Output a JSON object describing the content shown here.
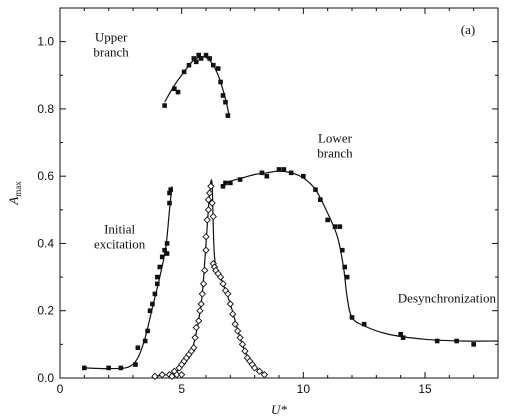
{
  "chart_data": {
    "type": "scatter",
    "panel_label": "(a)",
    "xlabel": "U*",
    "ylabel": {
      "main": "A",
      "sub": "max"
    },
    "xlim": [
      0,
      18
    ],
    "ylim": [
      0,
      1.1
    ],
    "xticks": [
      0,
      5,
      10,
      15
    ],
    "yticks": [
      0.0,
      0.2,
      0.4,
      0.6,
      0.8,
      1.0
    ],
    "annotations": [
      {
        "lines": [
          "Upper",
          "branch"
        ],
        "x": 2.1,
        "y": 1.0
      },
      {
        "lines": [
          "Lower",
          "branch"
        ],
        "x": 11.3,
        "y": 0.7
      },
      {
        "lines": [
          "Initial",
          "excitation"
        ],
        "x": 2.45,
        "y": 0.43
      },
      {
        "lines": [
          "Desynchronization"
        ],
        "x": 15.9,
        "y": 0.225
      }
    ],
    "series": [
      {
        "marker": "square-filled",
        "points": [
          [
            1.0,
            0.03
          ],
          [
            2.0,
            0.03
          ],
          [
            2.5,
            0.03
          ],
          [
            3.1,
            0.04
          ],
          [
            3.2,
            0.09
          ],
          [
            3.5,
            0.11
          ],
          [
            3.6,
            0.14
          ],
          [
            3.7,
            0.2
          ],
          [
            3.8,
            0.22
          ],
          [
            3.9,
            0.25
          ],
          [
            4.0,
            0.28
          ],
          [
            4.0,
            0.3
          ],
          [
            4.1,
            0.33
          ],
          [
            4.2,
            0.36
          ],
          [
            4.3,
            0.38
          ],
          [
            4.4,
            0.37
          ],
          [
            4.4,
            0.4
          ],
          [
            4.5,
            0.52
          ],
          [
            4.5,
            0.55
          ],
          [
            4.55,
            0.56
          ],
          [
            4.3,
            0.81
          ],
          [
            4.7,
            0.86
          ],
          [
            4.85,
            0.85
          ],
          [
            5.1,
            0.91
          ],
          [
            5.3,
            0.93
          ],
          [
            5.5,
            0.95
          ],
          [
            5.6,
            0.94
          ],
          [
            5.7,
            0.96
          ],
          [
            5.8,
            0.95
          ],
          [
            6.0,
            0.96
          ],
          [
            6.15,
            0.95
          ],
          [
            6.3,
            0.93
          ],
          [
            6.5,
            0.92
          ],
          [
            6.6,
            0.88
          ],
          [
            6.7,
            0.84
          ],
          [
            6.8,
            0.82
          ],
          [
            6.9,
            0.78
          ],
          [
            6.7,
            0.57
          ],
          [
            6.8,
            0.58
          ],
          [
            7.0,
            0.58
          ],
          [
            7.4,
            0.59
          ],
          [
            8.3,
            0.61
          ],
          [
            8.5,
            0.6
          ],
          [
            9.0,
            0.62
          ],
          [
            9.2,
            0.62
          ],
          [
            9.5,
            0.61
          ],
          [
            10.0,
            0.6
          ],
          [
            10.5,
            0.56
          ],
          [
            10.7,
            0.53
          ],
          [
            11.0,
            0.47
          ],
          [
            11.3,
            0.45
          ],
          [
            11.5,
            0.45
          ],
          [
            11.6,
            0.38
          ],
          [
            11.7,
            0.33
          ],
          [
            11.8,
            0.3
          ],
          [
            12.0,
            0.18
          ],
          [
            12.5,
            0.16
          ],
          [
            14.0,
            0.13
          ],
          [
            14.1,
            0.12
          ],
          [
            15.5,
            0.11
          ],
          [
            16.3,
            0.11
          ],
          [
            17.0,
            0.1
          ]
        ]
      },
      {
        "marker": "diamond-open",
        "points": [
          [
            3.9,
            0.005
          ],
          [
            4.2,
            0.01
          ],
          [
            4.5,
            0.01
          ],
          [
            4.7,
            0.02
          ],
          [
            4.9,
            0.03
          ],
          [
            5.0,
            0.04
          ],
          [
            5.1,
            0.05
          ],
          [
            5.2,
            0.06
          ],
          [
            5.3,
            0.07
          ],
          [
            5.4,
            0.08
          ],
          [
            5.5,
            0.09
          ],
          [
            5.55,
            0.12
          ],
          [
            5.6,
            0.15
          ],
          [
            5.7,
            0.17
          ],
          [
            5.75,
            0.2
          ],
          [
            5.8,
            0.22
          ],
          [
            5.85,
            0.25
          ],
          [
            5.9,
            0.28
          ],
          [
            5.95,
            0.32
          ],
          [
            6.0,
            0.38
          ],
          [
            6.0,
            0.42
          ],
          [
            6.05,
            0.47
          ],
          [
            6.1,
            0.5
          ],
          [
            6.1,
            0.53
          ],
          [
            6.15,
            0.55
          ],
          [
            6.2,
            0.57
          ],
          [
            6.25,
            0.52
          ],
          [
            6.3,
            0.48
          ],
          [
            6.3,
            0.34
          ],
          [
            6.35,
            0.33
          ],
          [
            6.4,
            0.32
          ],
          [
            6.5,
            0.31
          ],
          [
            6.6,
            0.3
          ],
          [
            6.7,
            0.28
          ],
          [
            6.8,
            0.26
          ],
          [
            6.9,
            0.25
          ],
          [
            7.0,
            0.22
          ],
          [
            7.1,
            0.19
          ],
          [
            7.2,
            0.16
          ],
          [
            7.3,
            0.14
          ],
          [
            7.4,
            0.12
          ],
          [
            7.5,
            0.1
          ],
          [
            7.6,
            0.08
          ],
          [
            7.7,
            0.06
          ],
          [
            7.8,
            0.05
          ],
          [
            7.9,
            0.04
          ],
          [
            8.0,
            0.03
          ],
          [
            8.2,
            0.02
          ],
          [
            8.4,
            0.01
          ],
          [
            4.6,
            0.005
          ],
          [
            4.8,
            0.01
          ],
          [
            5.0,
            0.01
          ]
        ]
      }
    ],
    "fit_curves": [
      {
        "points": [
          [
            1.0,
            0.03
          ],
          [
            2.0,
            0.028
          ],
          [
            2.8,
            0.032
          ],
          [
            3.2,
            0.06
          ],
          [
            3.5,
            0.12
          ],
          [
            3.8,
            0.21
          ],
          [
            4.1,
            0.3
          ],
          [
            4.35,
            0.39
          ],
          [
            4.5,
            0.5
          ],
          [
            4.6,
            0.57
          ]
        ]
      },
      {
        "points": [
          [
            4.3,
            0.82
          ],
          [
            4.7,
            0.87
          ],
          [
            5.1,
            0.91
          ],
          [
            5.5,
            0.945
          ],
          [
            5.9,
            0.955
          ],
          [
            6.2,
            0.94
          ],
          [
            6.5,
            0.9
          ],
          [
            6.8,
            0.83
          ],
          [
            6.95,
            0.78
          ]
        ]
      },
      {
        "points": [
          [
            6.6,
            0.57
          ],
          [
            7.0,
            0.585
          ],
          [
            7.5,
            0.595
          ],
          [
            8.0,
            0.605
          ],
          [
            8.5,
            0.61
          ],
          [
            9.0,
            0.615
          ],
          [
            9.5,
            0.61
          ],
          [
            10.0,
            0.595
          ],
          [
            10.5,
            0.56
          ],
          [
            11.0,
            0.49
          ],
          [
            11.4,
            0.42
          ],
          [
            11.65,
            0.33
          ],
          [
            11.8,
            0.24
          ],
          [
            12.0,
            0.18
          ],
          [
            12.5,
            0.155
          ],
          [
            13.5,
            0.13
          ],
          [
            15.0,
            0.115
          ],
          [
            16.5,
            0.11
          ],
          [
            18.0,
            0.11
          ]
        ]
      },
      {
        "points": [
          [
            3.9,
            0.005
          ],
          [
            4.8,
            0.02
          ],
          [
            5.4,
            0.08
          ],
          [
            5.8,
            0.22
          ],
          [
            6.0,
            0.4
          ],
          [
            6.15,
            0.55
          ],
          [
            6.25,
            0.575
          ],
          [
            6.35,
            0.36
          ],
          [
            6.6,
            0.3
          ],
          [
            7.0,
            0.22
          ],
          [
            7.4,
            0.12
          ],
          [
            7.8,
            0.05
          ],
          [
            8.4,
            0.01
          ]
        ]
      }
    ]
  }
}
